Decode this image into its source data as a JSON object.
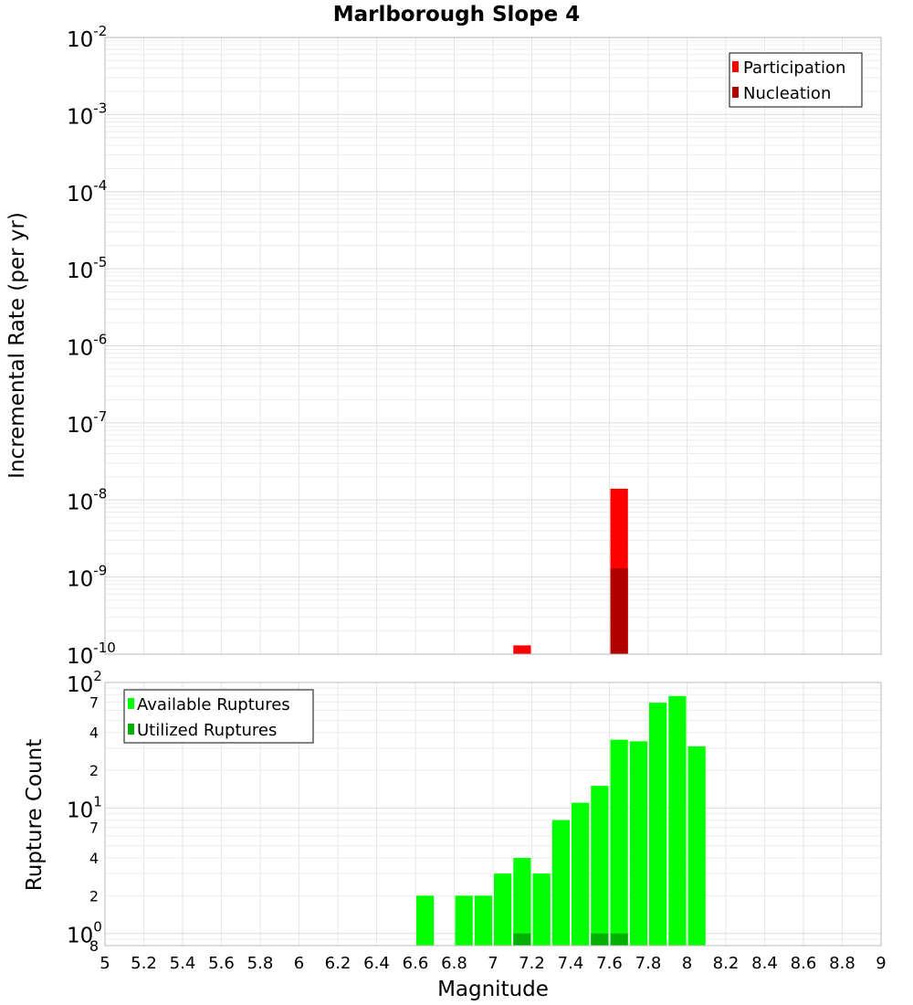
{
  "chart_data": [
    {
      "type": "bar",
      "title": "Marlborough Slope 4",
      "xlabel": "",
      "ylabel": "Incremental Rate (per yr)",
      "yscale": "log",
      "xlim": [
        5,
        9
      ],
      "ylim": [
        1e-10,
        0.01
      ],
      "y_tick_bases": [
        "10",
        "10",
        "10",
        "10",
        "10",
        "10",
        "10",
        "10",
        "10"
      ],
      "y_tick_exps": [
        "-10",
        "-9",
        "-8",
        "-7",
        "-6",
        "-5",
        "-4",
        "-3",
        "-2"
      ],
      "bar_width": 0.1,
      "legend_position": "top-right",
      "series": [
        {
          "name": "Participation",
          "color": "#ff0000",
          "x": [
            7.15,
            7.65
          ],
          "values": [
            1.3e-10,
            1.4e-08
          ]
        },
        {
          "name": "Nucleation",
          "color": "#b00000",
          "x": [
            7.65
          ],
          "values": [
            1.3e-09
          ]
        }
      ]
    },
    {
      "type": "bar",
      "title": "",
      "xlabel": "Magnitude",
      "ylabel": "Rupture Count",
      "yscale": "log",
      "xlim": [
        5,
        9
      ],
      "ylim": [
        0.8,
        100
      ],
      "x_tick_labels": [
        "5",
        "5.2",
        "5.4",
        "5.6",
        "5.8",
        "6",
        "6.2",
        "6.4",
        "6.6",
        "6.8",
        "7",
        "7.2",
        "7.4",
        "7.6",
        "7.8",
        "8",
        "8.2",
        "8.4",
        "8.6",
        "8.8",
        "9"
      ],
      "y_major_bases": [
        "10",
        "10",
        "10"
      ],
      "y_major_exps": [
        "0",
        "1",
        "2"
      ],
      "y_minor_labels": [
        "8",
        "2",
        "4",
        "7",
        "2",
        "4",
        "7"
      ],
      "bar_width": 0.1,
      "legend_position": "top-left",
      "series": [
        {
          "name": "Available Ruptures",
          "color": "#00ff00",
          "x": [
            6.65,
            6.85,
            6.95,
            7.05,
            7.15,
            7.25,
            7.35,
            7.45,
            7.55,
            7.65,
            7.75,
            7.85,
            7.95,
            8.05
          ],
          "values": [
            2,
            2,
            2,
            3,
            4,
            3,
            8,
            11,
            15,
            35,
            34,
            69,
            78,
            31
          ]
        },
        {
          "name": "Utilized Ruptures",
          "color": "#00b000",
          "x": [
            7.15,
            7.55,
            7.65
          ],
          "values": [
            1,
            1,
            1
          ]
        }
      ]
    }
  ]
}
